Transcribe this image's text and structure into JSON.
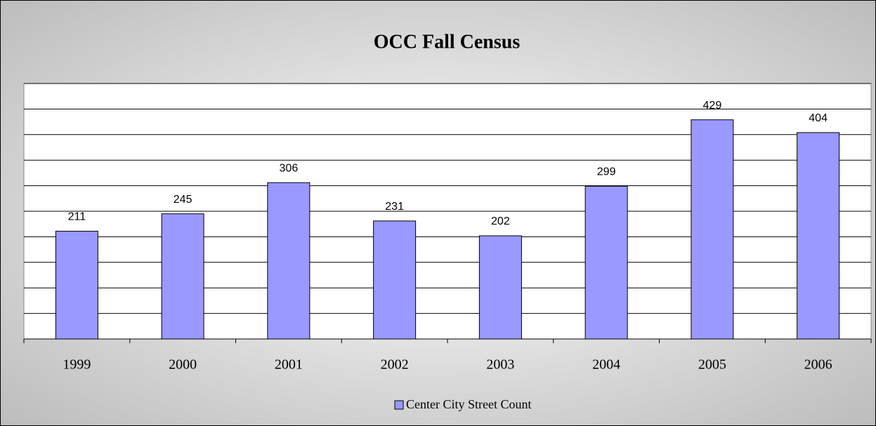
{
  "chart_data": {
    "type": "bar",
    "title": "OCC Fall Census",
    "categories": [
      "1999",
      "2000",
      "2001",
      "2002",
      "2003",
      "2004",
      "2005",
      "2006"
    ],
    "series": [
      {
        "name": "Center City Street Count",
        "color": "#9999ff",
        "values": [
          211,
          245,
          306,
          231,
          202,
          299,
          429,
          404
        ]
      }
    ],
    "ylim": [
      0,
      500
    ],
    "yticks": [
      0,
      50,
      100,
      150,
      200,
      250,
      300,
      350,
      400,
      450,
      500
    ],
    "grid": true,
    "legend": "bottom"
  }
}
